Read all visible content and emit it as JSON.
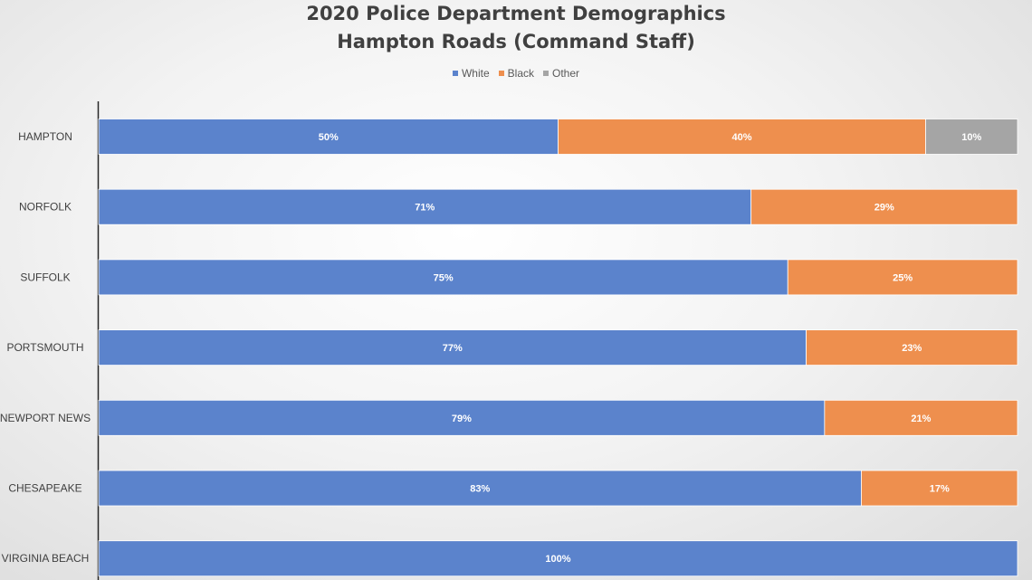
{
  "chart_data": {
    "type": "bar",
    "orientation": "horizontal",
    "stacked": true,
    "title": "2020 Police Department Demographics",
    "subtitle": "Hampton Roads (Command Staff)",
    "legend_position": "top",
    "grid": false,
    "xlim": [
      0,
      100
    ],
    "categories": [
      "HAMPTON",
      "NORFOLK",
      "SUFFOLK",
      "PORTSMOUTH",
      "NEWPORT NEWS",
      "CHESAPEAKE",
      "VIRGINIA BEACH"
    ],
    "series": [
      {
        "name": "White",
        "color": "#5b83cc",
        "values": [
          50,
          71,
          75,
          77,
          79,
          83,
          100
        ],
        "labels": [
          "50%",
          "71%",
          "75%",
          "77%",
          "79%",
          "83%",
          "100%"
        ]
      },
      {
        "name": "Black",
        "color": "#ee8f4e",
        "values": [
          40,
          29,
          25,
          23,
          21,
          17,
          0
        ],
        "labels": [
          "40%",
          "29%",
          "25%",
          "23%",
          "21%",
          "17%",
          ""
        ]
      },
      {
        "name": "Other",
        "color": "#a5a5a5",
        "values": [
          10,
          0,
          0,
          0,
          0,
          0,
          0
        ],
        "labels": [
          "10%",
          "",
          "",
          "",
          "",
          "",
          ""
        ]
      }
    ]
  }
}
